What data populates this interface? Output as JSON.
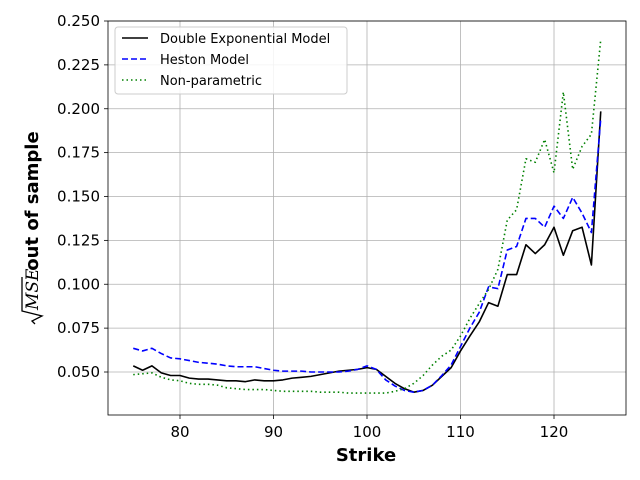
{
  "chart_data": {
    "type": "line",
    "xlabel": "Strike",
    "ylabel_radical": "MSE",
    "ylabel_suffix": " out of sample",
    "xlim": [
      72.3,
      127.7
    ],
    "ylim": [
      0.0255,
      0.25
    ],
    "xticks": [
      80,
      90,
      100,
      110,
      120
    ],
    "yticks": [
      0.05,
      0.075,
      0.1,
      0.125,
      0.15,
      0.175,
      0.2,
      0.225,
      0.25
    ],
    "ytick_labels": [
      "0.050",
      "0.075",
      "0.100",
      "0.125",
      "0.150",
      "0.175",
      "0.200",
      "0.225",
      "0.250"
    ],
    "grid": true,
    "legend_position": "top-left",
    "x": [
      75,
      76,
      77,
      78,
      79,
      80,
      81,
      82,
      83,
      84,
      85,
      86,
      87,
      88,
      89,
      90,
      91,
      92,
      93,
      94,
      95,
      96,
      97,
      98,
      99,
      100,
      101,
      102,
      103,
      104,
      105,
      106,
      107,
      108,
      109,
      110,
      111,
      112,
      113,
      114,
      115,
      116,
      117,
      118,
      119,
      120,
      121,
      122,
      123,
      124,
      125
    ],
    "series": [
      {
        "name": "Double Exponential Model",
        "color": "#000000",
        "style": "solid",
        "values": [
          0.0535,
          0.051,
          0.0535,
          0.0495,
          0.048,
          0.048,
          0.0465,
          0.046,
          0.046,
          0.0455,
          0.045,
          0.045,
          0.0445,
          0.0455,
          0.045,
          0.045,
          0.0455,
          0.0465,
          0.047,
          0.0475,
          0.0485,
          0.0495,
          0.0505,
          0.051,
          0.0515,
          0.0525,
          0.0515,
          0.0475,
          0.0435,
          0.0405,
          0.0385,
          0.0395,
          0.0425,
          0.0475,
          0.0525,
          0.062,
          0.0705,
          0.0785,
          0.0895,
          0.0875,
          0.1055,
          0.1055,
          0.1225,
          0.1175,
          0.1225,
          0.1325,
          0.1165,
          0.1305,
          0.1325,
          0.111,
          0.1985
        ]
      },
      {
        "name": "Heston Model",
        "color": "#0000ff",
        "style": "dashed",
        "values": [
          0.0635,
          0.062,
          0.0635,
          0.0605,
          0.058,
          0.0575,
          0.0565,
          0.0555,
          0.055,
          0.0545,
          0.0535,
          0.053,
          0.053,
          0.053,
          0.052,
          0.051,
          0.0505,
          0.0505,
          0.0505,
          0.05,
          0.05,
          0.05,
          0.05,
          0.0505,
          0.0515,
          0.0535,
          0.0515,
          0.0455,
          0.042,
          0.0395,
          0.0385,
          0.0395,
          0.0425,
          0.048,
          0.054,
          0.0645,
          0.075,
          0.084,
          0.0985,
          0.0975,
          0.1195,
          0.1215,
          0.1375,
          0.1375,
          0.1325,
          0.1445,
          0.1375,
          0.1495,
          0.1405,
          0.1295,
          0.1945
        ]
      },
      {
        "name": "Non-parametric",
        "color": "#008000",
        "style": "dotted",
        "values": [
          0.0485,
          0.049,
          0.0495,
          0.047,
          0.0455,
          0.045,
          0.0435,
          0.043,
          0.043,
          0.0425,
          0.041,
          0.0405,
          0.04,
          0.04,
          0.04,
          0.0395,
          0.039,
          0.039,
          0.039,
          0.039,
          0.0385,
          0.0385,
          0.0385,
          0.038,
          0.038,
          0.038,
          0.038,
          0.038,
          0.039,
          0.0405,
          0.0435,
          0.048,
          0.054,
          0.059,
          0.0625,
          0.0705,
          0.0805,
          0.089,
          0.097,
          0.1085,
          0.1365,
          0.1425,
          0.1715,
          0.1695,
          0.1825,
          0.1635,
          0.2095,
          0.1655,
          0.1785,
          0.1855,
          0.2395
        ]
      }
    ]
  }
}
